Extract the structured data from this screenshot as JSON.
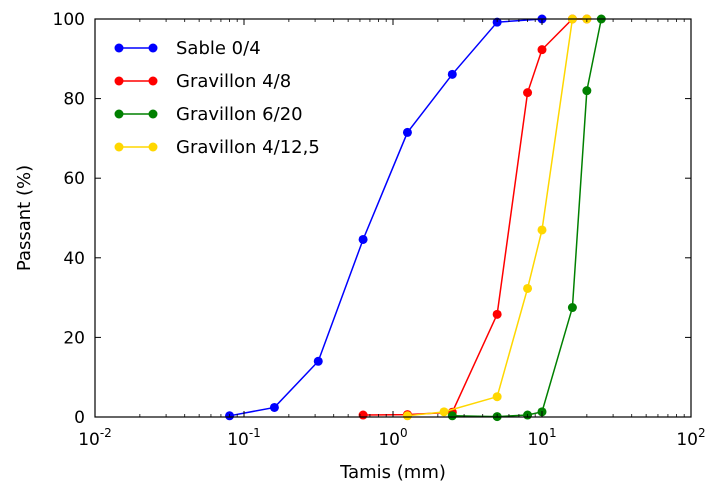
{
  "chart_data": {
    "type": "line",
    "title": "",
    "xlabel": "Tamis (mm)",
    "ylabel": "Passant (%)",
    "xscale": "log",
    "xlim": [
      0.01,
      100
    ],
    "ylim": [
      0,
      100
    ],
    "x_ticks": [
      {
        "base": "10",
        "exp": "-2"
      },
      {
        "base": "10",
        "exp": "-1"
      },
      {
        "base": "10",
        "exp": "0"
      },
      {
        "base": "10",
        "exp": "1"
      },
      {
        "base": "10",
        "exp": "2"
      }
    ],
    "y_ticks": [
      "0",
      "20",
      "40",
      "60",
      "80",
      "100"
    ],
    "grid": false,
    "legend_position": "top-left",
    "series": [
      {
        "name": "Sable 0/4",
        "color": "#0000ff",
        "x": [
          0.08,
          0.16,
          0.315,
          0.63,
          1.25,
          2.5,
          5,
          10
        ],
        "y": [
          0.3,
          2.4,
          14,
          44.6,
          71.5,
          86.1,
          99.2,
          100
        ]
      },
      {
        "name": "Gravillon 4/8",
        "color": "#ff0000",
        "x": [
          0.63,
          1.25,
          2.5,
          5,
          8,
          10,
          16,
          20
        ],
        "y": [
          0.5,
          0.6,
          1.2,
          25.8,
          81.5,
          92.3,
          100,
          100
        ]
      },
      {
        "name": "Gravillon 6/20",
        "color": "#008000",
        "x": [
          2.5,
          5,
          8,
          10,
          16,
          20,
          25
        ],
        "y": [
          0.3,
          0.1,
          0.5,
          1.3,
          27.5,
          82,
          100
        ]
      },
      {
        "name": "Gravillon 4/12,5",
        "color": "#ffd700",
        "x": [
          1.25,
          2.2,
          5,
          8,
          10,
          16,
          20
        ],
        "y": [
          0.3,
          1.3,
          5.1,
          32.3,
          47,
          100,
          100
        ]
      }
    ]
  }
}
